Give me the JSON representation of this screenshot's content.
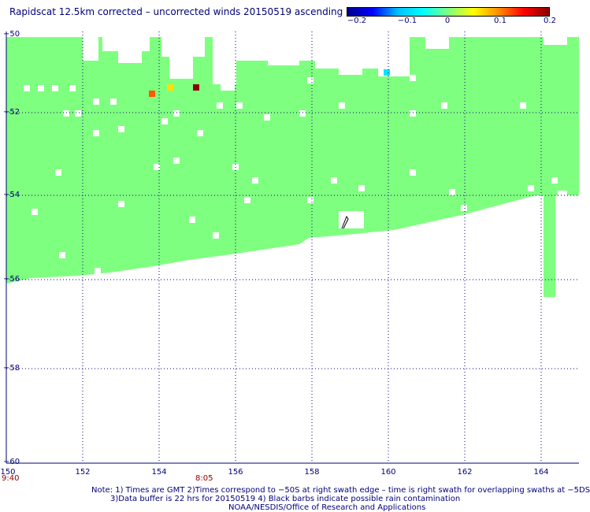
{
  "title": "Rapidscat 12.5km corrected – uncorrected winds 20150519 ascending",
  "colorbar": {
    "ticks": [
      "−0.2",
      "−0.1",
      "0",
      "0.1",
      "0.2"
    ],
    "colors": [
      "#00008b",
      "#0000ff",
      "#00bfff",
      "#00ffff",
      "#7fff7f",
      "#ffff00",
      "#ff8c00",
      "#ff0000",
      "#8b0000"
    ]
  },
  "axes": {
    "lat_labels": [
      "−50",
      "−52",
      "−54",
      "−56",
      "−58",
      "−60"
    ],
    "lon_labels": [
      "150",
      "152",
      "154",
      "156",
      "158",
      "160",
      "162",
      "164"
    ]
  },
  "time_labels": [
    "9:40",
    "8:05"
  ],
  "notes": {
    "line1": "Note: 1) Times are GMT 2)Times correspond to −50S at right swath edge – time is right swath for overlapping swaths at −5DS",
    "line2": "3)Data buffer is 22 hrs for 20150519 4) Black barbs indicate possible rain contamination",
    "line3": "NOAA/NESDIS/Office of Research and Applications"
  },
  "colors": {
    "swath": "#7fff7f",
    "grid": "#00007a",
    "text": "#00007a",
    "time": "#8b0000"
  }
}
